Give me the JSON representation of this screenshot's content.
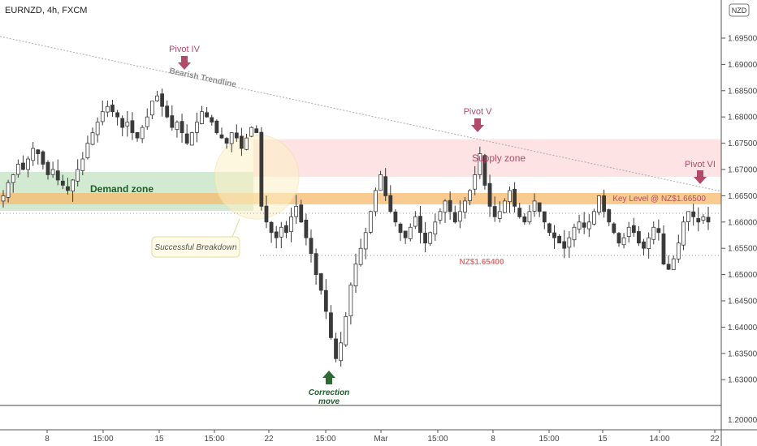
{
  "header": {
    "symbol_label": "EURNZD, 4h, FXCM"
  },
  "currency_badge": "NZD",
  "colors": {
    "candle": "#3a3a3a",
    "demand_zone": "#c9e6c9",
    "supply_zone": "#fde0e0",
    "key_level": "#f7b96b",
    "pivot_arrow": "#b24a6a",
    "correction_arrow": "#2e6b34",
    "nz_level_text": "#e57373",
    "trendline": "#aaaaaa"
  },
  "chart_data": {
    "type": "candlestick",
    "y_axis": {
      "range": [
        1.625,
        1.7
      ],
      "ticks": [
        "1.69500",
        "1.69000",
        "1.68500",
        "1.68000",
        "1.67500",
        "1.67000",
        "1.66500",
        "1.66000",
        "1.65500",
        "1.65000",
        "1.64500",
        "1.64000",
        "1.63500",
        "1.63000"
      ],
      "extra_tick": "1.20000"
    },
    "x_axis": {
      "ticks": [
        "8",
        "15:00",
        "15",
        "15:00",
        "22",
        "15:00",
        "Mar",
        "15:00",
        "8",
        "15:00",
        "15",
        "14:00",
        "22"
      ]
    },
    "close_path": [
      1.665,
      1.6675,
      1.669,
      1.671,
      1.67,
      1.672,
      1.674,
      1.673,
      1.671,
      1.669,
      1.67,
      1.668,
      1.667,
      1.666,
      1.668,
      1.67,
      1.672,
      1.675,
      1.677,
      1.679,
      1.681,
      1.682,
      1.681,
      1.68,
      1.678,
      1.679,
      1.677,
      1.676,
      1.678,
      1.68,
      1.683,
      1.684,
      1.682,
      1.68,
      1.678,
      1.679,
      1.677,
      1.675,
      1.677,
      1.679,
      1.681,
      1.68,
      1.679,
      1.677,
      1.676,
      1.675,
      1.677,
      1.676,
      1.674,
      1.676,
      1.678,
      1.677,
      1.663,
      1.66,
      1.658,
      1.657,
      1.659,
      1.658,
      1.661,
      1.663,
      1.66,
      1.657,
      1.654,
      1.65,
      1.647,
      1.643,
      1.638,
      1.634,
      1.637,
      1.642,
      1.648,
      1.652,
      1.655,
      1.658,
      1.662,
      1.666,
      1.669,
      1.665,
      1.662,
      1.66,
      1.658,
      1.657,
      1.659,
      1.661,
      1.658,
      1.656,
      1.658,
      1.66,
      1.662,
      1.664,
      1.662,
      1.66,
      1.662,
      1.664,
      1.666,
      1.669,
      1.673,
      1.667,
      1.663,
      1.661,
      1.662,
      1.664,
      1.666,
      1.663,
      1.661,
      1.66,
      1.662,
      1.664,
      1.662,
      1.66,
      1.658,
      1.657,
      1.656,
      1.655,
      1.657,
      1.659,
      1.66,
      1.659,
      1.66,
      1.662,
      1.665,
      1.662,
      1.66,
      1.658,
      1.656,
      1.657,
      1.659,
      1.658,
      1.656,
      1.655,
      1.657,
      1.659,
      1.658,
      1.652,
      1.651,
      1.653,
      1.656,
      1.66,
      1.662,
      1.661,
      1.66,
      1.661,
      1.66
    ],
    "levels": {
      "key_level": 1.665,
      "nz_level": 1.654
    },
    "zones": {
      "demand": [
        1.6635,
        1.6705
      ],
      "supply": [
        1.669,
        1.6758
      ]
    }
  },
  "annotations": {
    "pivot_iv": "Pivot IV",
    "pivot_v": "Pivot V",
    "pivot_vi": "Pivot VI",
    "bearish_trendline": "Bearish Trendline",
    "supply_zone": "Supply zone",
    "demand_zone": "Demand zone",
    "key_level": "Key Level @ NZ$1.66500",
    "nz_level": "NZ$1.65400",
    "successful_breakdown": "Successful Breakdown",
    "correction_line1": "Correction",
    "correction_line2": "move"
  }
}
